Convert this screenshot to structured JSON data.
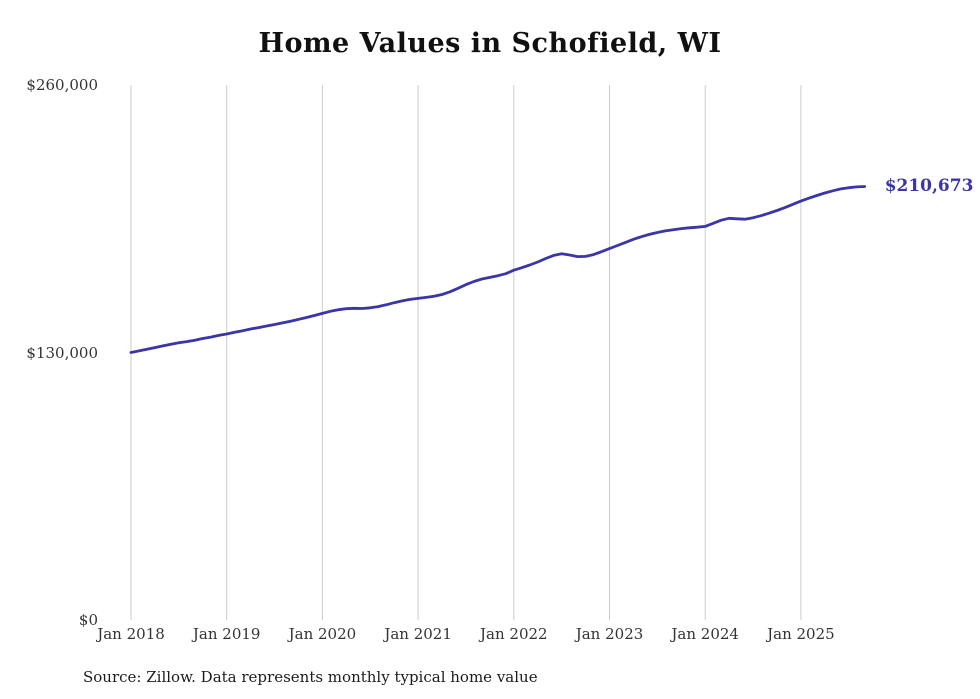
{
  "title": "Home Values in Schofield, WI",
  "source_note": "Source: Zillow. Data represents monthly typical home value",
  "end_label": "$210,673",
  "colors": {
    "line": "#3a35a8",
    "gridline": "#cccccc",
    "tick_text": "#333333"
  },
  "chart_data": {
    "type": "line",
    "title": "Home Values in Schofield, WI",
    "xlabel": "",
    "ylabel": "",
    "ylim": [
      0,
      260000
    ],
    "y_ticks": [
      0,
      130000,
      260000
    ],
    "y_tick_labels": [
      "$0",
      "$130,000",
      "$260,000"
    ],
    "x_tick_labels": [
      "Jan 2018",
      "Jan 2019",
      "Jan 2020",
      "Jan 2021",
      "Jan 2022",
      "Jan 2023",
      "Jan 2024",
      "Jan 2025"
    ],
    "grid": "vertical-only",
    "legend": "none",
    "start_month": "2018-01",
    "frequency": "monthly",
    "final_value": 210673,
    "values": [
      130000,
      130800,
      131600,
      132400,
      133200,
      134000,
      134700,
      135300,
      136000,
      136800,
      137500,
      138300,
      139000,
      139800,
      140600,
      141400,
      142100,
      142900,
      143600,
      144400,
      145200,
      146100,
      147000,
      148000,
      149000,
      150000,
      150800,
      151300,
      151500,
      151400,
      151700,
      152300,
      153200,
      154200,
      155100,
      155800,
      156300,
      156800,
      157300,
      158200,
      159500,
      161200,
      163000,
      164500,
      165700,
      166500,
      167300,
      168300,
      170000,
      171200,
      172500,
      174000,
      175700,
      177200,
      178000,
      177400,
      176600,
      176700,
      177600,
      179000,
      180500,
      182000,
      183500,
      185000,
      186300,
      187400,
      188300,
      189100,
      189700,
      190200,
      190600,
      190900,
      191300,
      192800,
      194300,
      195200,
      195000,
      194800,
      195500,
      196500,
      197700,
      199000,
      200400,
      202000,
      203600,
      205000,
      206300,
      207500,
      208600,
      209500,
      210100,
      210500,
      210673
    ]
  }
}
